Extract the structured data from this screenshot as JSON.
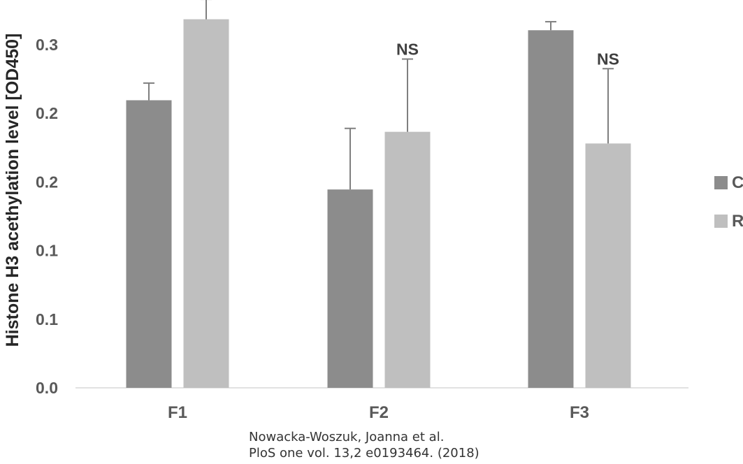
{
  "chart_data": {
    "type": "bar",
    "title": "",
    "xlabel": "",
    "ylabel": "Histone H3 acethylation level [OD450]",
    "ylim": [
      0,
      0.27
    ],
    "yticks": [
      0.0,
      0.05,
      0.1,
      0.15,
      0.2,
      0.25
    ],
    "ytick_labels": [
      "0.0",
      "0.1",
      "0.1",
      "0.2",
      "0.2",
      "0.3"
    ],
    "categories": [
      "F1",
      "F2",
      "F3"
    ],
    "series": [
      {
        "name": "C",
        "color": "#8c8c8c",
        "values": [
          0.2095,
          0.1445,
          0.2605
        ],
        "errors": [
          0.0125,
          0.0445,
          0.0062
        ]
      },
      {
        "name": "R",
        "color": "#bfbfbf",
        "values": [
          0.2685,
          0.1865,
          0.178
        ],
        "errors": [
          0.0145,
          0.053,
          0.0545
        ]
      }
    ],
    "annotations": [
      {
        "category": "F1",
        "series": "R",
        "text": "**"
      },
      {
        "category": "F2",
        "series": "R",
        "text": "NS"
      },
      {
        "category": "F3",
        "series": "R",
        "text": "NS"
      }
    ],
    "grid": false,
    "legend": "right"
  },
  "citation": {
    "line1": "Nowacka-Woszuk, Joanna et al.",
    "line2": "PloS one vol. 13,2 e0193464. (2018)"
  }
}
